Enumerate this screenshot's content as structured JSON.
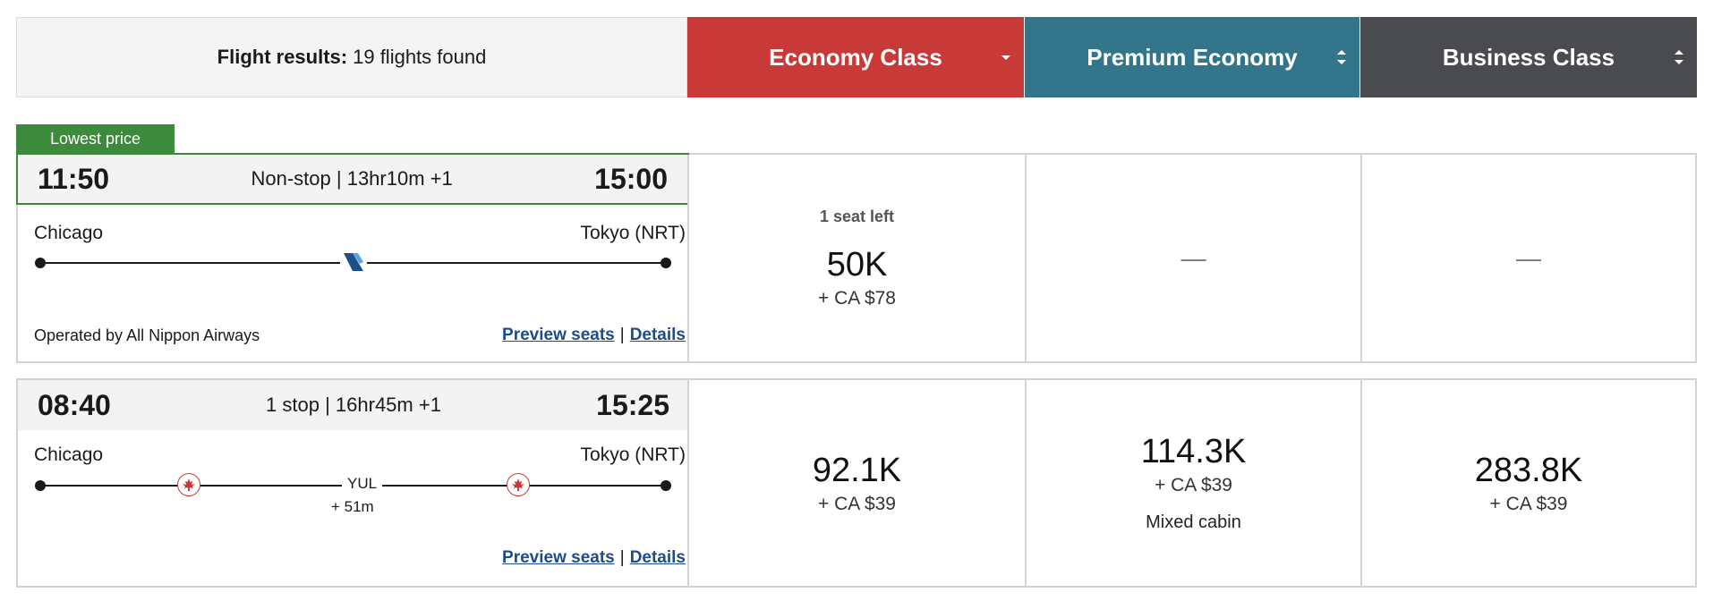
{
  "header": {
    "results_label": "Flight results:",
    "results_count": "19 flights found",
    "cabins": [
      {
        "label": "Economy Class",
        "color": "#c83a37"
      },
      {
        "label": "Premium Economy",
        "color": "#33758b"
      },
      {
        "label": "Business Class",
        "color": "#4a4b4e"
      }
    ]
  },
  "badge": {
    "lowest_price": "Lowest price",
    "color": "#3d8a3c"
  },
  "flights": [
    {
      "departure": "11:50",
      "arrival": "15:00",
      "summary": "Non-stop | 13hr10m +1",
      "origin": "Chicago",
      "destination": "Tokyo (NRT)",
      "operated_by": "Operated by All Nippon Airways",
      "preview_seats": "Preview seats",
      "separator": "|",
      "details": "Details",
      "airline_icon": "ana-tail-icon",
      "fares": {
        "economy": {
          "seats_left": "1 seat left",
          "points": "50K",
          "cash": "+ CA $78"
        },
        "premium": {
          "text": "—"
        },
        "business": {
          "text": "—"
        }
      }
    },
    {
      "departure": "08:40",
      "arrival": "15:25",
      "summary": "1 stop | 16hr45m +1",
      "origin": "Chicago",
      "destination": "Tokyo (NRT)",
      "stop_code": "YUL",
      "layover": "+ 51m",
      "preview_seats": "Preview seats",
      "separator": "|",
      "details": "Details",
      "airline_icon": "air-canada-maple-leaf-icon",
      "fares": {
        "economy": {
          "points": "92.1K",
          "cash": "+ CA $39"
        },
        "premium": {
          "points": "114.3K",
          "cash": "+ CA $39",
          "note": "Mixed cabin"
        },
        "business": {
          "points": "283.8K",
          "cash": "+ CA $39"
        }
      }
    }
  ]
}
